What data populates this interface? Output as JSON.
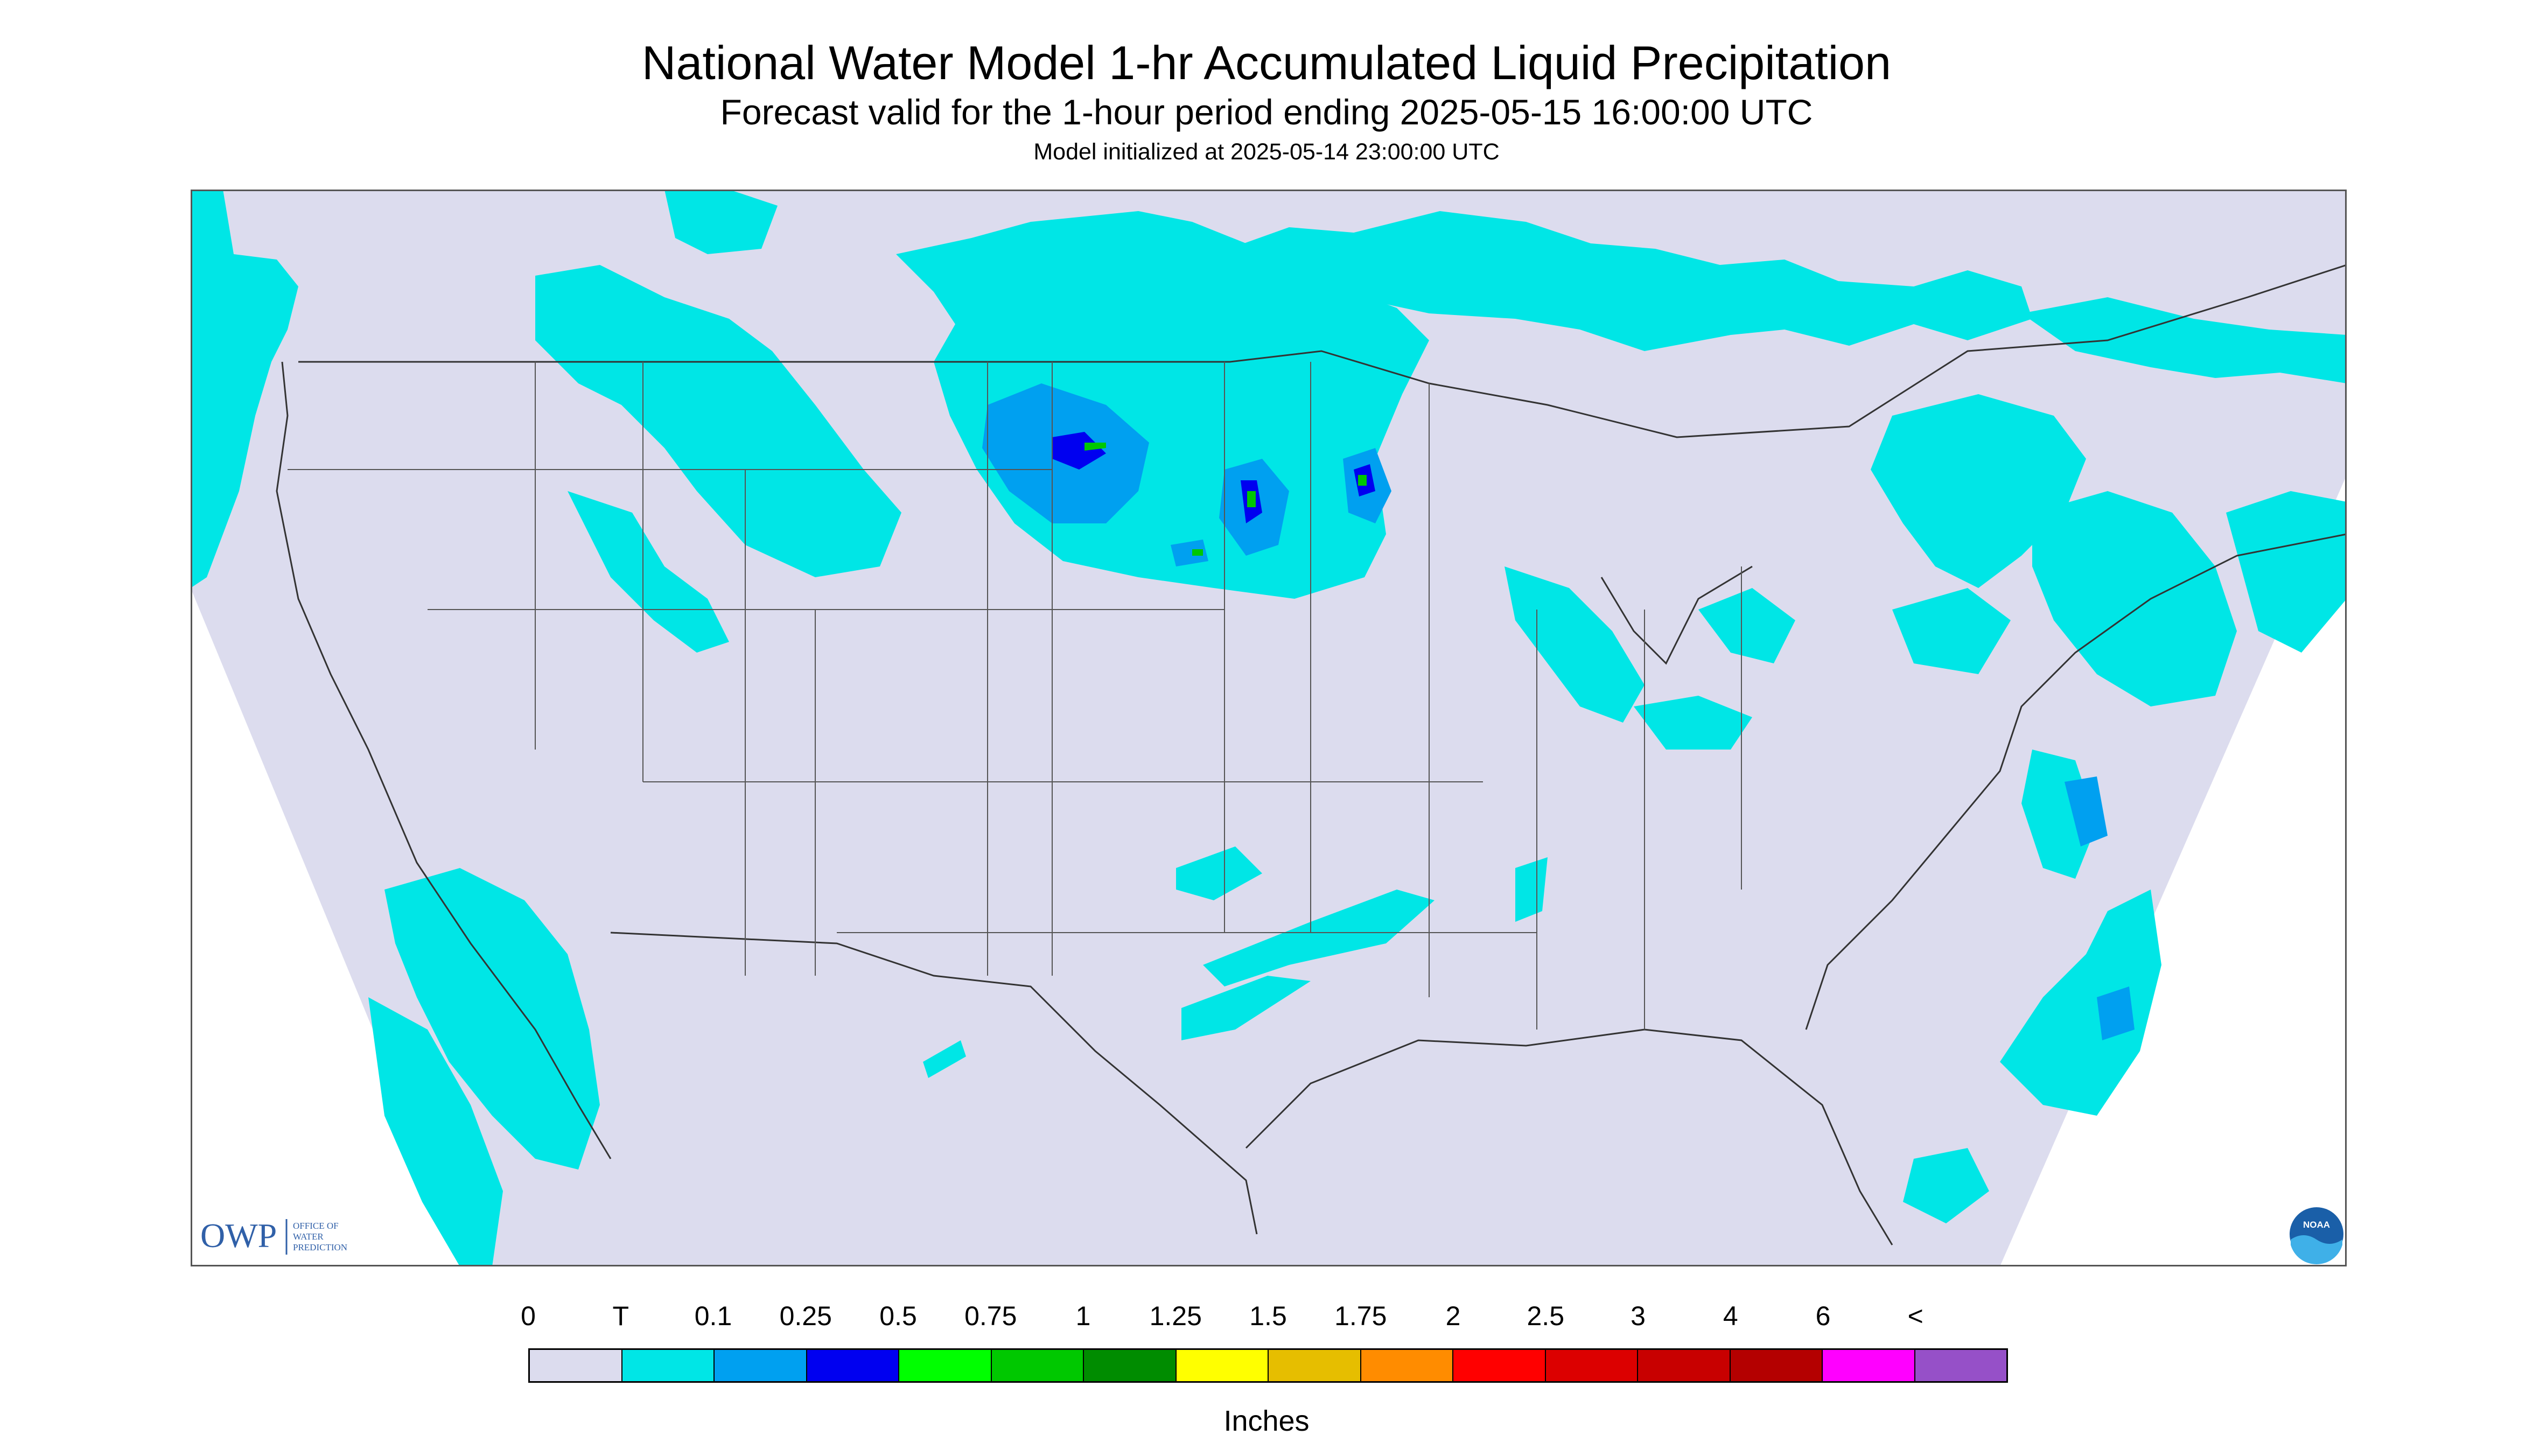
{
  "title": "National Water Model 1-hr Accumulated Liquid Precipitation",
  "subtitle": "Forecast valid for the 1-hour period ending 2025-05-15 16:00:00 UTC",
  "init_line": "Model initialized at 2025-05-14 23:00:00 UTC",
  "logos": {
    "owp_text": "OWP",
    "owp_caption": [
      "OFFICE OF",
      "WATER",
      "PREDICTION"
    ],
    "noaa_text": "NOAA"
  },
  "colors": {
    "background": "#dcdcee",
    "land_no_data": "#ffffff",
    "trace": "#00e6e6",
    "light": "#00a0f0",
    "moderate": "#0000ff",
    "heavy": "#00c000"
  },
  "legend": {
    "units_label": "Inches",
    "labels": [
      "0",
      "T",
      "0.1",
      "0.25",
      "0.5",
      "0.75",
      "1",
      "1.25",
      "1.5",
      "1.75",
      "2",
      "2.5",
      "3",
      "4",
      "6",
      "<"
    ],
    "colors": [
      "#dcdcee",
      "#00e6e6",
      "#00a0f0",
      "#0000f0",
      "#00ff00",
      "#00c800",
      "#008c00",
      "#ffff00",
      "#e6be00",
      "#ff8c00",
      "#ff0000",
      "#dc0000",
      "#c80000",
      "#b40000",
      "#ff00ff",
      "#9650c8"
    ]
  }
}
